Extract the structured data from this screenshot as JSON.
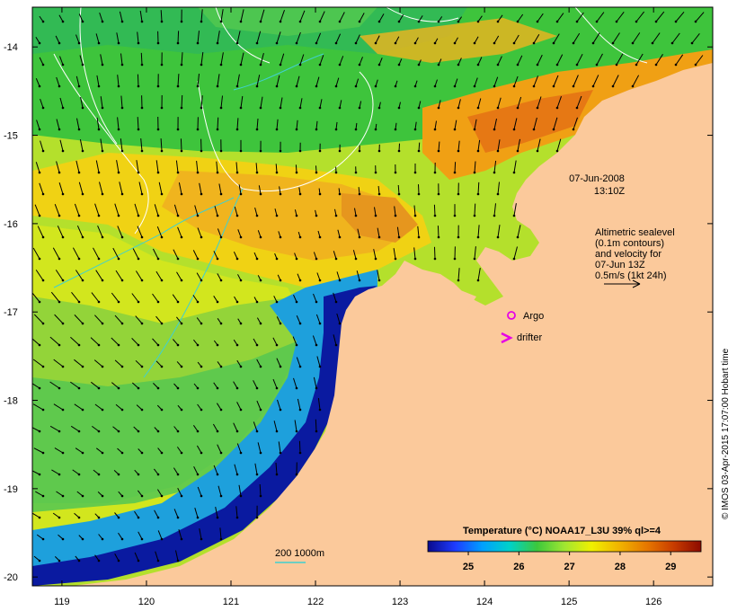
{
  "map": {
    "date_line1": "07-Jun-2008",
    "date_line2": "13:10Z",
    "altimetry_note": [
      "Altimetric sealevel",
      "(0.1m contours)",
      "and velocity for",
      "07-Jun 13Z",
      "0.5m/s (1kt 24h)"
    ],
    "argo_label": "Argo",
    "drifter_label": "drifter",
    "depth_legend": "200  1000m",
    "credit": "© IMOS 03-Apr-2015 17:07:00 Hobart time",
    "colorbar": {
      "title": "Temperature (°C) NOAA17_L3U 39% ql>=4",
      "ticks": [
        "25",
        "26",
        "27",
        "28",
        "29"
      ],
      "colors": [
        "#0a0a8c",
        "#1e3cff",
        "#00a0ff",
        "#00d2c8",
        "#3cc83c",
        "#a0e632",
        "#f0f000",
        "#f0b400",
        "#e67800",
        "#c83c00",
        "#8c0a00"
      ]
    },
    "lon_ticks": [
      "119",
      "120",
      "121",
      "122",
      "123",
      "124",
      "125",
      "126"
    ],
    "lat_ticks": [
      "-14",
      "-15",
      "-16",
      "-17",
      "-18",
      "-19",
      "-20"
    ],
    "extent": {
      "lon_min": 118.65,
      "lon_max": 126.7,
      "lat_min": -20.1,
      "lat_max": -13.55
    },
    "land_color": "#fbc99b",
    "sst_colors": {
      "cold": "#0a1aa0",
      "cool": "#1ea0dc",
      "mid_green": "#3cc83c",
      "warm_green": "#a0dc32",
      "yellow": "#f0e614",
      "orange": "#f0a014",
      "deep_orange": "#e67814"
    }
  }
}
